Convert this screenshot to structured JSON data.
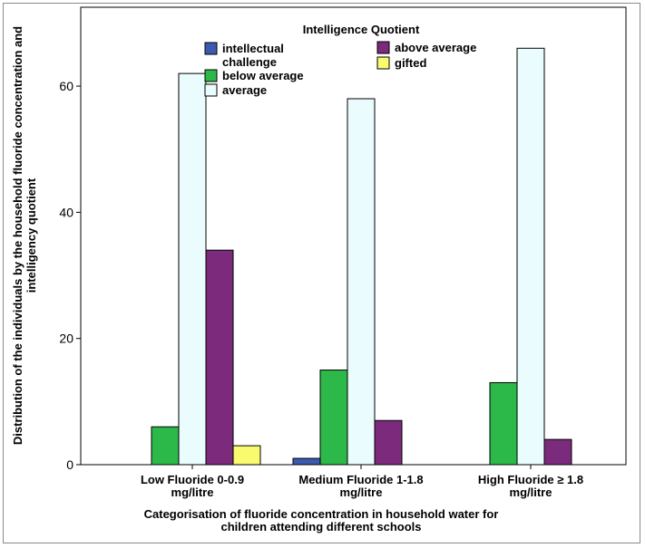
{
  "chart_data": {
    "type": "bar",
    "categories": [
      [
        "Low Fluoride 0-0.9",
        "mg/litre"
      ],
      [
        "Medium Fluoride 1-1.8",
        "mg/litre"
      ],
      [
        "High Fluoride ≥ 1.8",
        "mg/litre"
      ]
    ],
    "series": [
      {
        "name": "intellectual challenge",
        "label_lines": [
          "intellectual",
          "challenge"
        ],
        "color": "#3c5bb0",
        "values": [
          0,
          1,
          0
        ]
      },
      {
        "name": "below average",
        "label_lines": [
          "below average"
        ],
        "color": "#2db84a",
        "values": [
          6,
          15,
          13
        ]
      },
      {
        "name": "average",
        "label_lines": [
          "average"
        ],
        "color": "#eafcfd",
        "values": [
          62,
          58,
          66
        ]
      },
      {
        "name": "above average",
        "label_lines": [
          "above average"
        ],
        "color": "#7c2a7c",
        "values": [
          34,
          7,
          4
        ]
      },
      {
        "name": "gifted",
        "label_lines": [
          "gifted"
        ],
        "color": "#fafa6e",
        "values": [
          3,
          0,
          0
        ]
      }
    ],
    "legend_title": "Intelligence Quotient",
    "legend_placement": "top-center",
    "xlabel": [
      "Categorisation of fluoride concentration in household water for",
      "children attending different schools"
    ],
    "ylabel": [
      "Distribution of the individuals by the household fluoride concentration and",
      "intelligency quotient"
    ],
    "yticks": [
      0,
      20,
      40,
      60
    ],
    "ylim": [
      0,
      72.5
    ],
    "grid": false
  }
}
